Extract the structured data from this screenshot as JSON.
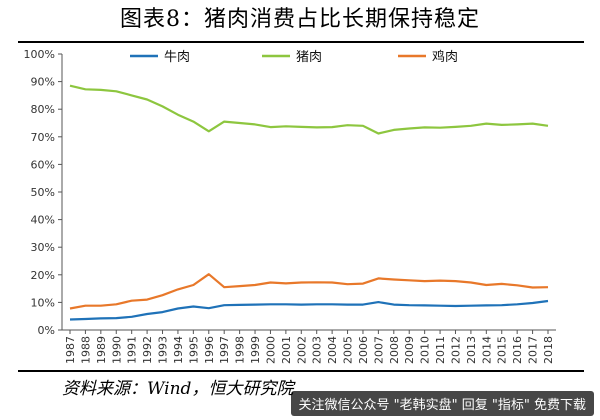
{
  "title": "图表8：猪肉消费占比长期保持稳定",
  "source": "资料来源：Wind，恒大研究院",
  "watermark": "关注微信公众号 \"老韩实盘\" 回复 \"指标\" 免费下载",
  "chart_data": {
    "type": "line",
    "title": "",
    "xlabel": "",
    "ylabel": "",
    "ylim": [
      0,
      100
    ],
    "yticks": [
      "0%",
      "10%",
      "20%",
      "30%",
      "40%",
      "50%",
      "60%",
      "70%",
      "80%",
      "90%",
      "100%"
    ],
    "x": [
      "1987",
      "1988",
      "1989",
      "1990",
      "1991",
      "1992",
      "1993",
      "1994",
      "1995",
      "1996",
      "1997",
      "1998",
      "1999",
      "2000",
      "2001",
      "2002",
      "2003",
      "2004",
      "2005",
      "2006",
      "2007",
      "2008",
      "2009",
      "2010",
      "2011",
      "2012",
      "2013",
      "2014",
      "2015",
      "2016",
      "2017",
      "2018"
    ],
    "legend_position": "top",
    "series": [
      {
        "name": "牛肉",
        "color": "#1f72b8",
        "values": [
          3.8,
          4.0,
          4.2,
          4.3,
          4.8,
          5.8,
          6.5,
          7.8,
          8.5,
          7.9,
          9.0,
          9.1,
          9.2,
          9.3,
          9.3,
          9.2,
          9.3,
          9.3,
          9.2,
          9.2,
          10.1,
          9.2,
          9.0,
          8.9,
          8.8,
          8.7,
          8.8,
          8.9,
          9.0,
          9.3,
          9.8,
          10.5
        ]
      },
      {
        "name": "猪肉",
        "color": "#8dc63f",
        "values": [
          88.5,
          87.2,
          87.0,
          86.5,
          85.0,
          83.5,
          81.0,
          78.0,
          75.5,
          72.0,
          75.5,
          75.0,
          74.5,
          73.5,
          73.8,
          73.6,
          73.4,
          73.5,
          74.2,
          74.0,
          71.2,
          72.5,
          73.0,
          73.4,
          73.3,
          73.6,
          74.0,
          74.8,
          74.3,
          74.5,
          74.8,
          74.0
        ]
      },
      {
        "name": "鸡肉",
        "color": "#e8782a",
        "values": [
          7.8,
          8.8,
          8.8,
          9.3,
          10.6,
          11.0,
          12.6,
          14.7,
          16.3,
          20.2,
          15.5,
          15.9,
          16.3,
          17.2,
          16.9,
          17.2,
          17.3,
          17.2,
          16.6,
          16.8,
          18.7,
          18.3,
          18.0,
          17.7,
          17.9,
          17.7,
          17.2,
          16.3,
          16.7,
          16.2,
          15.4,
          15.5
        ]
      }
    ]
  }
}
